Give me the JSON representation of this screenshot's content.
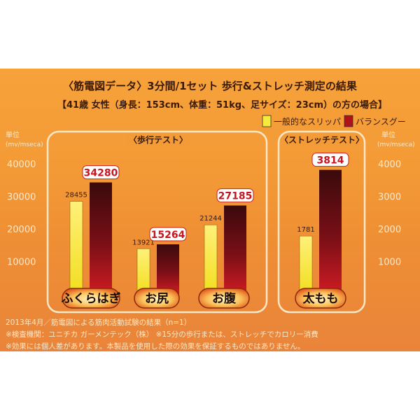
{
  "chart_data": {
    "type": "bar",
    "title": "〈筋電図データ〉3分間/1セット 歩行&ストレッチ測定の結果",
    "subtitle": "【41歳 女性（身長：153cm、体重：51kg、足サイズ：23cm）の方の場合】",
    "legend": {
      "placement": "top-right",
      "entries": [
        "一般的なスリッパ",
        "バランスグー"
      ]
    },
    "colors": {
      "series1": "#f6ea3a",
      "series2": "#b0121a",
      "panel_border": "#fbe8c8",
      "label_box": "#ffffff"
    },
    "groups": [
      {
        "name": "〈歩行テスト〉",
        "ylabel": "単位\n(mv/mseca)",
        "ylim": [
          0,
          40000
        ],
        "yticks": [
          "10000",
          "20000",
          "30000",
          "40000"
        ],
        "categories": [
          "ふくらはぎ",
          "お尻",
          "お腹"
        ],
        "series": [
          {
            "name": "一般的なスリッパ",
            "values": [
              28455,
              13921,
              21244
            ]
          },
          {
            "name": "バランスグー",
            "values": [
              34280,
              15264,
              27185
            ]
          }
        ]
      },
      {
        "name": "〈ストレッチテスト〉",
        "ylabel": "単位\n(mv/mseca)",
        "ylim": [
          0,
          4000
        ],
        "yticks": [
          "1000",
          "2000",
          "3000",
          "4000"
        ],
        "categories": [
          "太もも"
        ],
        "series": [
          {
            "name": "一般的なスリッパ",
            "values": [
              1781
            ]
          },
          {
            "name": "バランスグー",
            "values": [
              3814
            ]
          }
        ]
      }
    ]
  },
  "footnotes": [
    "2013年4月／筋電図による筋肉活動試験の結果（n=1）",
    "※検査機関：ユニチカ ガーメンテック（株） ※15分の歩行または、ストレッチでカロリー消費",
    "※効果には個人差があります。本製品を使用した際の効果を保証するものではありません。"
  ]
}
